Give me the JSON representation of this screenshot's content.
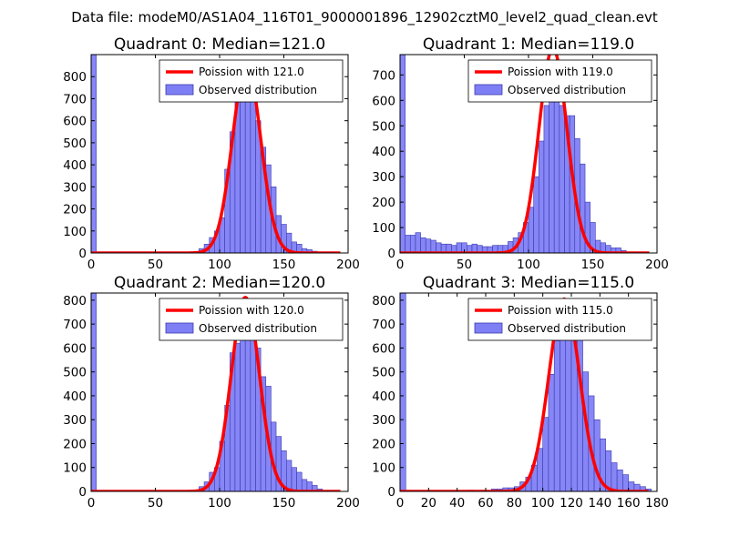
{
  "figure_title": "Data file: modeM0/AS1A04_116T01_9000001896_12902cztM0_level2_quad_clean.evt",
  "colors": {
    "bar_fill": "#7f7ff5",
    "bar_edge": "#3a3ab0",
    "poisson_line": "#ff0000",
    "axes": "#000000"
  },
  "chart_data": [
    {
      "type": "bar",
      "title": "Quadrant 0: Median=121.0",
      "median": 121.0,
      "xlim": [
        0,
        200
      ],
      "ylim": [
        0,
        900
      ],
      "xticks": [
        0,
        50,
        100,
        150,
        200
      ],
      "yticks": [
        0,
        100,
        200,
        300,
        400,
        500,
        600,
        700,
        800
      ],
      "bin_width": 4,
      "bars": [
        [
          0,
          900
        ],
        [
          84,
          20
        ],
        [
          88,
          40
        ],
        [
          92,
          70
        ],
        [
          96,
          100
        ],
        [
          100,
          160
        ],
        [
          104,
          380
        ],
        [
          108,
          550
        ],
        [
          112,
          720
        ],
        [
          116,
          830
        ],
        [
          120,
          820
        ],
        [
          124,
          730
        ],
        [
          128,
          600
        ],
        [
          132,
          480
        ],
        [
          136,
          400
        ],
        [
          140,
          300
        ],
        [
          144,
          170
        ],
        [
          148,
          130
        ],
        [
          152,
          90
        ],
        [
          156,
          50
        ],
        [
          160,
          40
        ],
        [
          164,
          20
        ],
        [
          168,
          15
        ],
        [
          172,
          8
        ]
      ],
      "poisson_mean": 121.0,
      "poisson_peak": 855,
      "legend": [
        "Poission with 121.0",
        "Observed distribution"
      ]
    },
    {
      "type": "bar",
      "title": "Quadrant 1: Median=119.0",
      "median": 119.0,
      "xlim": [
        0,
        200
      ],
      "ylim": [
        0,
        780
      ],
      "xticks": [
        0,
        50,
        100,
        150,
        200
      ],
      "yticks": [
        0,
        100,
        200,
        300,
        400,
        500,
        600,
        700
      ],
      "bin_width": 4,
      "bars": [
        [
          0,
          780
        ],
        [
          4,
          70
        ],
        [
          8,
          70
        ],
        [
          12,
          80
        ],
        [
          16,
          60
        ],
        [
          20,
          55
        ],
        [
          24,
          50
        ],
        [
          28,
          40
        ],
        [
          32,
          35
        ],
        [
          36,
          35
        ],
        [
          40,
          30
        ],
        [
          44,
          40
        ],
        [
          48,
          40
        ],
        [
          52,
          30
        ],
        [
          56,
          35
        ],
        [
          60,
          30
        ],
        [
          64,
          25
        ],
        [
          68,
          25
        ],
        [
          72,
          30
        ],
        [
          76,
          30
        ],
        [
          80,
          30
        ],
        [
          84,
          45
        ],
        [
          88,
          60
        ],
        [
          92,
          80
        ],
        [
          96,
          120
        ],
        [
          100,
          180
        ],
        [
          104,
          300
        ],
        [
          108,
          440
        ],
        [
          112,
          580
        ],
        [
          116,
          650
        ],
        [
          120,
          660
        ],
        [
          124,
          580
        ],
        [
          128,
          540
        ],
        [
          132,
          540
        ],
        [
          136,
          450
        ],
        [
          140,
          350
        ],
        [
          144,
          200
        ],
        [
          148,
          120
        ],
        [
          152,
          50
        ],
        [
          156,
          40
        ],
        [
          160,
          30
        ],
        [
          164,
          20
        ],
        [
          168,
          20
        ],
        [
          172,
          10
        ]
      ],
      "poisson_mean": 119.0,
      "poisson_peak": 805,
      "legend": [
        "Poission with 119.0",
        "Observed distribution"
      ]
    },
    {
      "type": "bar",
      "title": "Quadrant 2: Median=120.0",
      "median": 120.0,
      "xlim": [
        0,
        200
      ],
      "ylim": [
        0,
        830
      ],
      "xticks": [
        0,
        50,
        100,
        150,
        200
      ],
      "yticks": [
        0,
        100,
        200,
        300,
        400,
        500,
        600,
        700,
        800
      ],
      "bin_width": 4,
      "bars": [
        [
          0,
          830
        ],
        [
          84,
          20
        ],
        [
          88,
          40
        ],
        [
          92,
          80
        ],
        [
          96,
          100
        ],
        [
          100,
          210
        ],
        [
          104,
          360
        ],
        [
          108,
          580
        ],
        [
          112,
          620
        ],
        [
          116,
          720
        ],
        [
          120,
          700
        ],
        [
          124,
          650
        ],
        [
          128,
          600
        ],
        [
          132,
          480
        ],
        [
          136,
          440
        ],
        [
          140,
          290
        ],
        [
          144,
          230
        ],
        [
          148,
          170
        ],
        [
          152,
          130
        ],
        [
          156,
          100
        ],
        [
          160,
          80
        ],
        [
          164,
          50
        ],
        [
          168,
          40
        ],
        [
          172,
          25
        ],
        [
          176,
          10
        ]
      ],
      "poisson_mean": 120.0,
      "poisson_peak": 812,
      "legend": [
        "Poission with 120.0",
        "Observed distribution"
      ]
    },
    {
      "type": "bar",
      "title": "Quadrant 3: Median=115.0",
      "median": 115.0,
      "xlim": [
        0,
        180
      ],
      "ylim": [
        0,
        830
      ],
      "xticks": [
        0,
        20,
        40,
        60,
        80,
        100,
        120,
        140,
        160,
        180
      ],
      "yticks": [
        0,
        100,
        200,
        300,
        400,
        500,
        600,
        700,
        800
      ],
      "bin_width": 4,
      "bars": [
        [
          0,
          830
        ],
        [
          48,
          5
        ],
        [
          56,
          5
        ],
        [
          64,
          10
        ],
        [
          68,
          10
        ],
        [
          72,
          15
        ],
        [
          76,
          15
        ],
        [
          80,
          20
        ],
        [
          84,
          40
        ],
        [
          88,
          60
        ],
        [
          92,
          110
        ],
        [
          96,
          180
        ],
        [
          100,
          310
        ],
        [
          104,
          490
        ],
        [
          108,
          630
        ],
        [
          112,
          720
        ],
        [
          116,
          770
        ],
        [
          120,
          720
        ],
        [
          124,
          640
        ],
        [
          128,
          500
        ],
        [
          132,
          400
        ],
        [
          136,
          300
        ],
        [
          140,
          220
        ],
        [
          144,
          170
        ],
        [
          148,
          120
        ],
        [
          152,
          90
        ],
        [
          156,
          70
        ],
        [
          160,
          40
        ],
        [
          164,
          30
        ],
        [
          168,
          20
        ],
        [
          172,
          10
        ]
      ],
      "poisson_mean": 115.0,
      "poisson_peak": 805,
      "legend": [
        "Poission with 115.0",
        "Observed distribution"
      ]
    }
  ]
}
